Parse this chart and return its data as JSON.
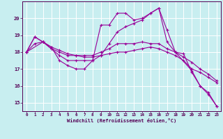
{
  "xlabel": "Windchill (Refroidissement éolien,°C)",
  "background_color": "#c8eef0",
  "line_color": "#990099",
  "grid_color": "#ffffff",
  "xlim": [
    -0.5,
    23.5
  ],
  "ylim": [
    14.5,
    21.0
  ],
  "yticks": [
    15,
    16,
    17,
    18,
    19,
    20
  ],
  "xticks": [
    0,
    1,
    2,
    3,
    4,
    5,
    6,
    7,
    8,
    9,
    10,
    11,
    12,
    13,
    14,
    15,
    16,
    17,
    18,
    19,
    20,
    21,
    22,
    23
  ],
  "lines": [
    {
      "x": [
        0,
        1,
        2,
        3,
        4,
        5,
        6,
        7,
        8,
        9,
        10,
        11,
        12,
        13,
        14,
        15,
        16,
        17,
        18,
        19,
        20,
        21,
        22,
        23
      ],
      "y": [
        18.0,
        18.9,
        18.6,
        18.3,
        17.5,
        17.2,
        17.0,
        17.0,
        17.5,
        19.6,
        19.6,
        20.3,
        20.3,
        19.9,
        20.0,
        20.3,
        20.6,
        19.3,
        18.0,
        17.9,
        16.8,
        16.0,
        15.5,
        14.8
      ]
    },
    {
      "x": [
        0,
        1,
        2,
        3,
        4,
        5,
        6,
        7,
        8,
        9,
        10,
        11,
        12,
        13,
        14,
        15,
        16,
        17,
        18,
        19,
        20,
        21,
        22,
        23
      ],
      "y": [
        18.0,
        18.9,
        18.6,
        18.2,
        18.0,
        17.8,
        17.8,
        17.8,
        17.8,
        18.0,
        18.2,
        18.5,
        18.5,
        18.5,
        18.6,
        18.5,
        18.5,
        18.2,
        18.0,
        17.7,
        17.4,
        17.0,
        16.7,
        16.3
      ]
    },
    {
      "x": [
        0,
        2,
        3,
        4,
        5,
        6,
        7,
        8,
        9,
        10,
        11,
        12,
        13,
        14,
        15,
        16,
        17,
        18,
        20,
        21,
        22,
        23
      ],
      "y": [
        18.0,
        18.6,
        18.2,
        17.8,
        17.5,
        17.5,
        17.5,
        17.5,
        17.8,
        18.5,
        19.2,
        19.5,
        19.7,
        19.9,
        20.3,
        20.6,
        18.6,
        18.0,
        16.9,
        16.0,
        15.6,
        14.8
      ]
    },
    {
      "x": [
        0,
        1,
        2,
        3,
        4,
        5,
        6,
        7,
        8,
        9,
        10,
        11,
        12,
        13,
        14,
        15,
        16,
        17,
        18,
        19,
        20,
        21,
        22,
        23
      ],
      "y": [
        18.0,
        18.5,
        18.6,
        18.3,
        18.1,
        17.9,
        17.8,
        17.7,
        17.7,
        17.8,
        17.9,
        18.0,
        18.0,
        18.1,
        18.2,
        18.3,
        18.2,
        18.0,
        17.8,
        17.5,
        17.0,
        16.8,
        16.5,
        16.2
      ]
    }
  ]
}
